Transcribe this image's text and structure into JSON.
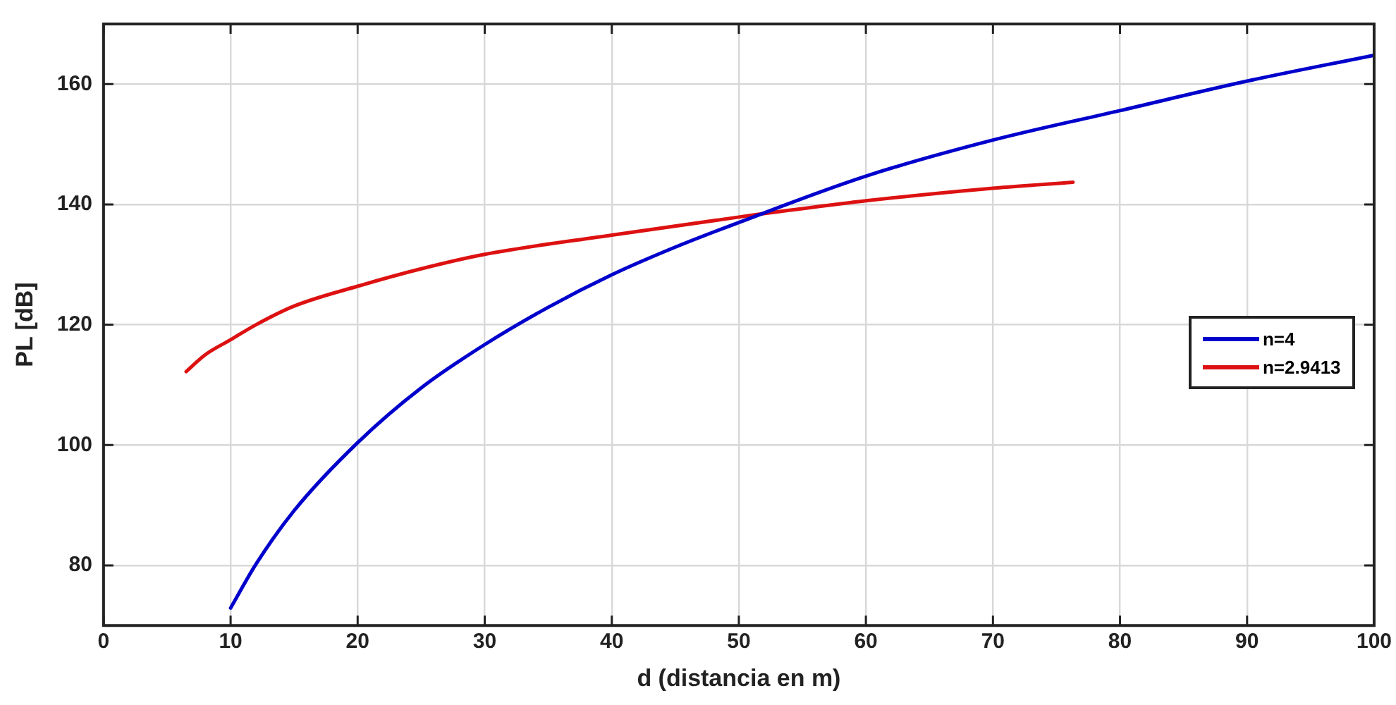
{
  "chart_data": {
    "type": "line",
    "xlabel": "d (distancia en m)",
    "ylabel": "PL [dB]",
    "xlim": [
      0,
      100
    ],
    "xticks": [
      0,
      10,
      20,
      30,
      40,
      50,
      60,
      70,
      80,
      90,
      100
    ],
    "ylim": [
      70,
      170
    ],
    "yticks": [
      80,
      100,
      120,
      140,
      160
    ],
    "grid": true,
    "legend": "right",
    "marker": "none",
    "line_style": "solid",
    "series": [
      {
        "name": "n=4",
        "color": "#0000cc",
        "x": [
          10,
          12,
          15,
          20,
          25,
          30,
          35,
          40,
          45,
          50,
          60,
          70,
          80,
          90,
          100
        ],
        "values": [
          72.9,
          80.2,
          89.1,
          100.4,
          109.5,
          116.7,
          122.9,
          128.3,
          132.9,
          137.0,
          144.7,
          150.7,
          155.6,
          160.5,
          164.8
        ]
      },
      {
        "name": "n=2.9413",
        "color": "#dd1111",
        "x": [
          6.5,
          8,
          10,
          12,
          15,
          20,
          25,
          30,
          40,
          50,
          60,
          70,
          76.3
        ],
        "values": [
          112.2,
          115.0,
          117.5,
          120.0,
          123.1,
          126.4,
          129.3,
          131.7,
          134.9,
          137.9,
          140.6,
          142.7,
          143.7
        ]
      }
    ]
  }
}
